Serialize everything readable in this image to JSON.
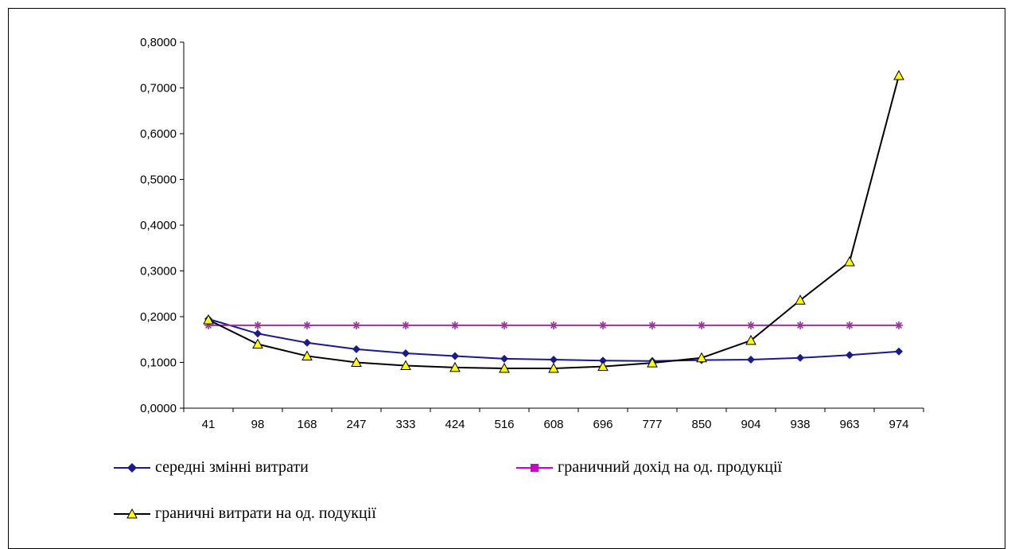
{
  "chart_data": {
    "type": "line",
    "categories": [
      "41",
      "98",
      "168",
      "247",
      "333",
      "424",
      "516",
      "608",
      "696",
      "777",
      "850",
      "904",
      "938",
      "963",
      "974"
    ],
    "ylim": [
      0,
      0.8
    ],
    "yticks": [
      "0,0000",
      "0,1000",
      "0,2000",
      "0,3000",
      "0,4000",
      "0,5000",
      "0,6000",
      "0,7000",
      "0,8000"
    ],
    "grid": false,
    "legend_position": "bottom",
    "series": [
      {
        "name": "середні змінні витрати",
        "color": "#1a1a8c",
        "marker": "diamond",
        "values": [
          0.195,
          0.163,
          0.143,
          0.129,
          0.12,
          0.114,
          0.108,
          0.106,
          0.104,
          0.103,
          0.105,
          0.106,
          0.11,
          0.116,
          0.124
        ]
      },
      {
        "name": "граничний дохід на од. продукції",
        "color": "#cc00cc",
        "line_color": "#993399",
        "marker": "square",
        "plotted_marker": "asterisk",
        "values": [
          0.181,
          0.181,
          0.181,
          0.181,
          0.181,
          0.181,
          0.181,
          0.181,
          0.181,
          0.181,
          0.181,
          0.181,
          0.181,
          0.181,
          0.181
        ]
      },
      {
        "name": "граничні витрати на од. подукції",
        "color": "#000000",
        "marker": "triangle",
        "marker_fill": "#ffff00",
        "values": [
          0.193,
          0.14,
          0.114,
          0.1,
          0.093,
          0.089,
          0.087,
          0.087,
          0.091,
          0.099,
          0.11,
          0.148,
          0.236,
          0.32,
          0.727
        ]
      }
    ]
  }
}
